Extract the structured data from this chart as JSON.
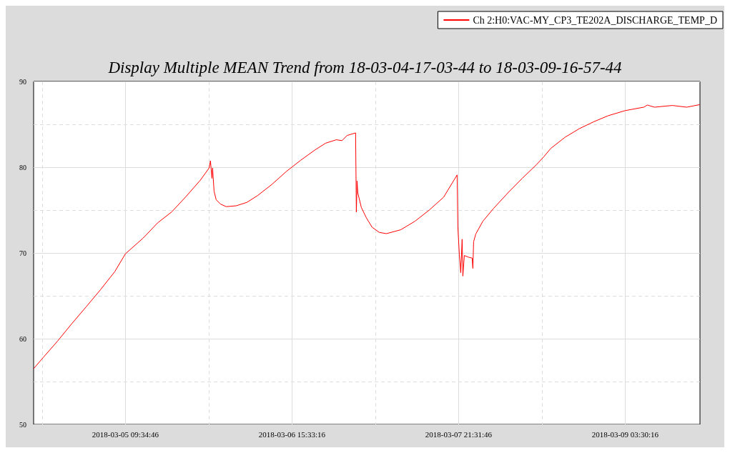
{
  "chart_data": {
    "type": "line",
    "title": "Display Multiple MEAN Trend from 18-03-04-17-03-44 to 18-03-09-16-57-44",
    "x": [
      "2018-03-04T17:04",
      "2018-03-04T18:47",
      "2018-03-04T21:21",
      "2018-03-04T23:56",
      "2018-03-05T02:30",
      "2018-03-05T05:05",
      "2018-03-05T07:39",
      "2018-03-05T09:35",
      "2018-03-05T12:48",
      "2018-03-05T15:22",
      "2018-03-05T17:56",
      "2018-03-05T20:31",
      "2018-03-05T23:05",
      "2018-03-06T00:38",
      "2018-03-06T00:53",
      "2018-03-06T01:09",
      "2018-03-06T01:16",
      "2018-03-06T01:32",
      "2018-03-06T01:55",
      "2018-03-06T02:41",
      "2018-03-06T03:43",
      "2018-03-06T05:31",
      "2018-03-06T07:27",
      "2018-03-06T09:23",
      "2018-03-06T11:57",
      "2018-03-06T14:32",
      "2018-03-06T17:06",
      "2018-03-06T19:40",
      "2018-03-06T21:36",
      "2018-03-06T23:32",
      "2018-03-07T00:34",
      "2018-03-07T01:28",
      "2018-03-07T03:00",
      "2018-03-07T03:08",
      "2018-03-07T03:16",
      "2018-03-07T03:24",
      "2018-03-07T04:02",
      "2018-03-07T04:56",
      "2018-03-07T05:58",
      "2018-03-07T07:15",
      "2018-03-07T08:32",
      "2018-03-07T11:07",
      "2018-03-07T13:41",
      "2018-03-07T16:15",
      "2018-03-07T18:50",
      "2018-03-07T21:16",
      "2018-03-07T21:24",
      "2018-03-07T21:40",
      "2018-03-07T21:55",
      "2018-03-07T22:10",
      "2018-03-07T22:18",
      "2018-03-07T22:34",
      "2018-03-07T23:20",
      "2018-03-07T23:58",
      "2018-03-08T00:06",
      "2018-03-08T00:14",
      "2018-03-08T00:37",
      "2018-03-08T01:54",
      "2018-03-08T03:50",
      "2018-03-08T06:24",
      "2018-03-08T08:59",
      "2018-03-08T11:33",
      "2018-03-08T12:50",
      "2018-03-08T14:08",
      "2018-03-08T16:42",
      "2018-03-08T19:16",
      "2018-03-08T21:51",
      "2018-03-09T00:25",
      "2018-03-09T03:30",
      "2018-03-09T06:51",
      "2018-03-09T07:30",
      "2018-03-09T08:47",
      "2018-03-09T12:00",
      "2018-03-09T14:34",
      "2018-03-09T16:57"
    ],
    "series": [
      {
        "name": "Ch 2:H0:VAC-MY_CP3_TE202A_DISCHARGE_TEMP_D",
        "color": "#ff0000",
        "values": [
          56.5,
          57.8,
          59.7,
          61.75,
          63.7,
          65.7,
          67.8,
          69.9,
          71.75,
          73.5,
          74.8,
          76.6,
          78.5,
          79.9,
          80.75,
          78.7,
          79.9,
          77.2,
          76.2,
          75.7,
          75.4,
          75.5,
          75.9,
          76.7,
          78,
          79.5,
          80.8,
          82,
          82.8,
          83.2,
          83.1,
          83.7,
          84,
          74.75,
          78.4,
          77,
          75.3,
          74.1,
          73,
          72.4,
          72.25,
          72.7,
          73.7,
          75,
          76.5,
          79.1,
          73,
          69.8,
          67.7,
          71.6,
          67.3,
          69.7,
          69.5,
          69.4,
          68.2,
          71.3,
          72.2,
          73.7,
          75.2,
          77,
          78.7,
          80.3,
          81.2,
          82.2,
          83.5,
          84.5,
          85.3,
          86,
          86.6,
          87,
          87.25,
          87,
          87.2,
          87,
          87.3
        ]
      }
    ],
    "xlim": [
      "2018-03-04T17:03:44",
      "2018-03-09T16:57:44"
    ],
    "xticks": [
      {
        "value": "2018-03-04T18:35:31",
        "label": null
      },
      {
        "value": "2018-03-05T09:34:46",
        "label": "2018-03-05 09:34:46"
      },
      {
        "value": "2018-03-06T00:34:01",
        "label": null
      },
      {
        "value": "2018-03-06T15:33:16",
        "label": "2018-03-06 15:33:16"
      },
      {
        "value": "2018-03-07T06:32:31",
        "label": null
      },
      {
        "value": "2018-03-07T21:31:46",
        "label": "2018-03-07 21:31:46"
      },
      {
        "value": "2018-03-08T12:31:01",
        "label": null
      },
      {
        "value": "2018-03-09T03:30:16",
        "label": "2018-03-09 03:30:16"
      }
    ],
    "ylim": [
      50,
      90
    ],
    "yticks": [
      50,
      {
        "value": 55,
        "label": null
      },
      60,
      {
        "value": 65,
        "label": null
      },
      70,
      {
        "value": 75,
        "label": null
      },
      80,
      {
        "value": 85,
        "label": null
      },
      90
    ],
    "grid": true,
    "legend": "top right",
    "marker": "none",
    "line_style": "solid"
  }
}
